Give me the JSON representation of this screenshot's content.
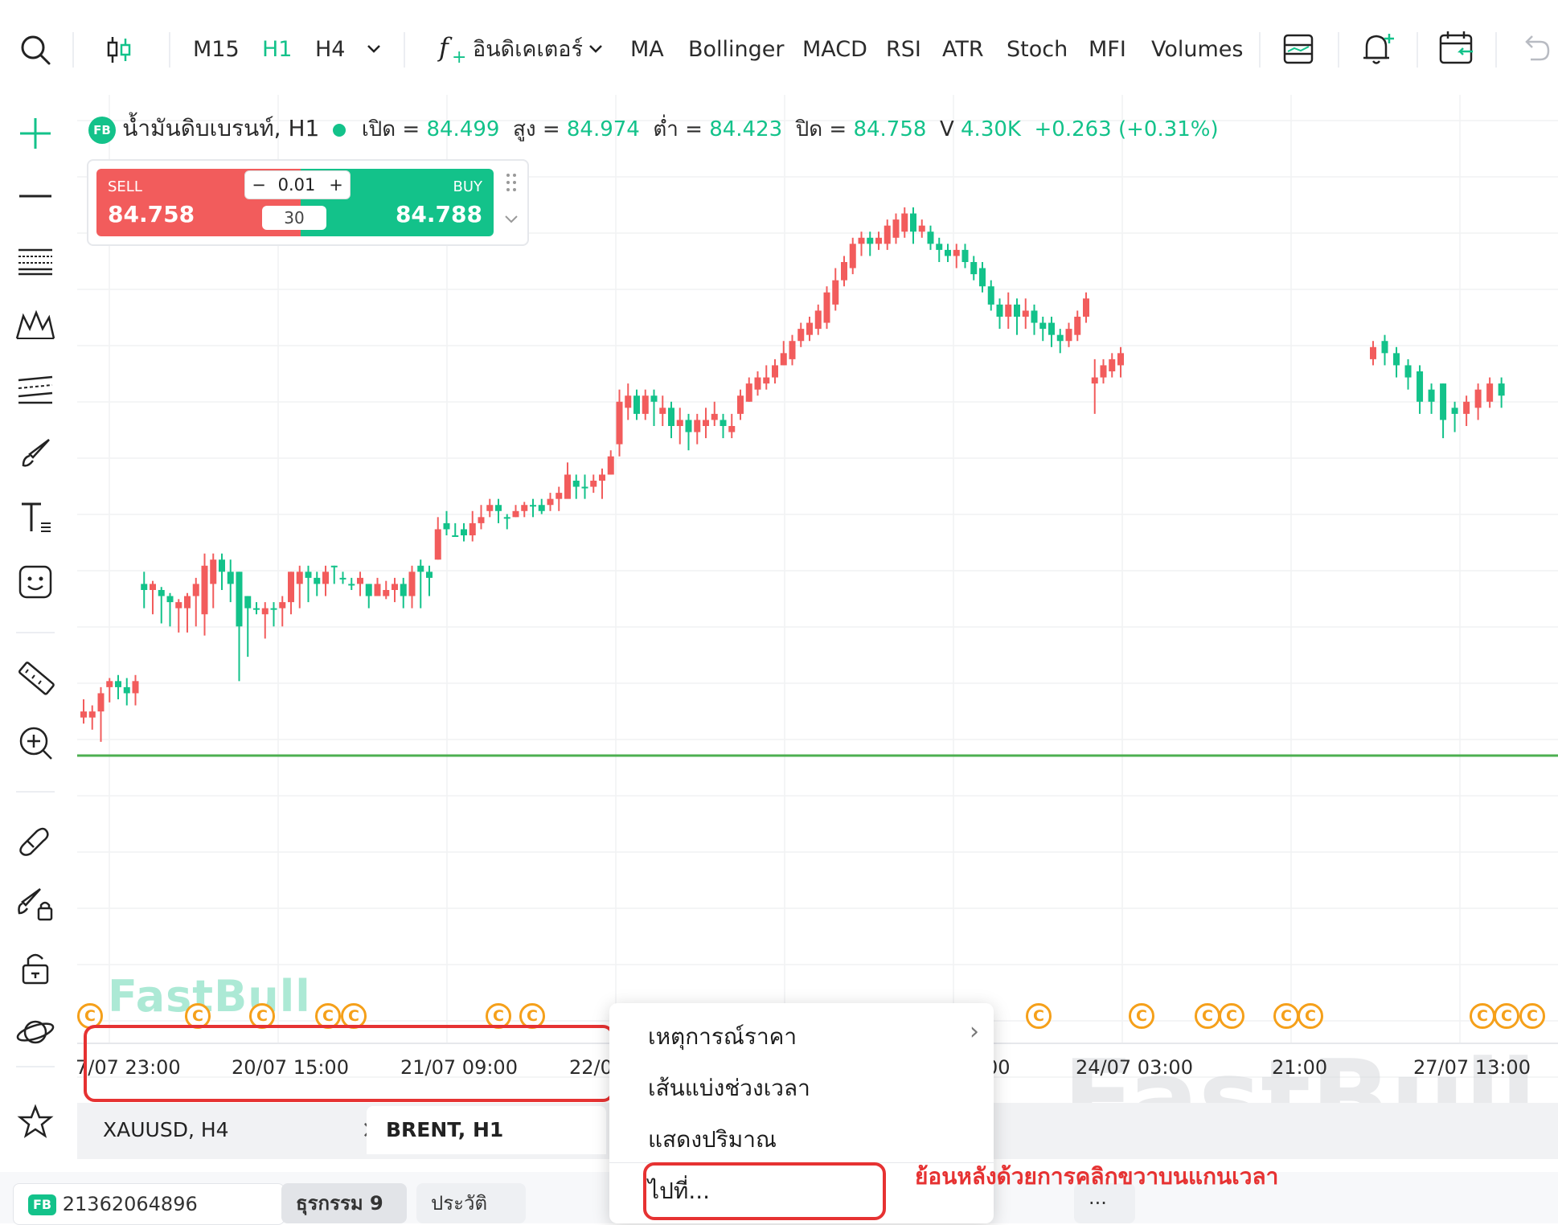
{
  "toolbar": {
    "timeframes": [
      "M15",
      "H1",
      "H4"
    ],
    "active_timeframe": "H1",
    "indicators_label": "อินดิเคเตอร์",
    "indicator_buttons": [
      "MA",
      "Bollinger",
      "MACD",
      "RSI",
      "ATR",
      "Stoch",
      "MFI",
      "Volumes"
    ]
  },
  "legend": {
    "badge": "FB",
    "symbol": "น้ำมันดิบเบรนท์, H1",
    "open_label": "เปิด =",
    "open": "84.499",
    "high_label": "สูง =",
    "high": "84.974",
    "low_label": "ต่ำ =",
    "low": "84.423",
    "close_label": "ปิด =",
    "close": "84.758",
    "volume_label": "V",
    "volume": "4.30K",
    "change": "+0.263 (+0.31%)"
  },
  "trade_panel": {
    "sell_label": "SELL",
    "sell_price": "84.758",
    "buy_label": "BUY",
    "buy_price": "84.788",
    "lot_minus": "−",
    "lot_value": "0.01",
    "lot_plus": "+",
    "spread": "30"
  },
  "chart_data": {
    "type": "candlestick",
    "symbol": "น้ำมันดิบเบรนท์",
    "timeframe": "H1",
    "x_tick_labels": [
      "7/07 23:00",
      "20/07 15:00",
      "21/07 09:00",
      "22/0",
      "00",
      "24/07 03:00",
      "21:00",
      "27/07 13:00"
    ],
    "colors": {
      "up": "#13c28a",
      "down": "#f25c5c",
      "baseline": "#4caf50"
    },
    "candles": [
      [
        70,
        60,
        90,
        50
      ],
      [
        70,
        60,
        80,
        40
      ],
      [
        100,
        70,
        110,
        20
      ],
      [
        120,
        110,
        125,
        85
      ],
      [
        110,
        120,
        130,
        90
      ],
      [
        100,
        110,
        125,
        80
      ],
      [
        120,
        100,
        130,
        80
      ],
      [
        270,
        280,
        300,
        240
      ],
      [
        280,
        270,
        285,
        230
      ],
      [
        260,
        270,
        275,
        215
      ],
      [
        250,
        260,
        265,
        210
      ],
      [
        250,
        240,
        255,
        200
      ],
      [
        260,
        240,
        265,
        200
      ],
      [
        280,
        260,
        290,
        210
      ],
      [
        310,
        230,
        330,
        195
      ],
      [
        320,
        280,
        330,
        240
      ],
      [
        300,
        320,
        330,
        270
      ],
      [
        280,
        300,
        320,
        250
      ],
      [
        210,
        300,
        300,
        120
      ],
      [
        240,
        260,
        260,
        160
      ],
      [
        240,
        240,
        250,
        230
      ],
      [
        240,
        230,
        250,
        190
      ],
      [
        240,
        240,
        250,
        210
      ],
      [
        250,
        240,
        260,
        210
      ],
      [
        300,
        250,
        300,
        230
      ],
      [
        300,
        280,
        310,
        240
      ],
      [
        290,
        300,
        310,
        250
      ],
      [
        280,
        290,
        300,
        260
      ],
      [
        300,
        280,
        310,
        260
      ],
      [
        310,
        310,
        310,
        280
      ],
      [
        290,
        290,
        300,
        280
      ],
      [
        280,
        280,
        290,
        270
      ],
      [
        290,
        280,
        300,
        260
      ],
      [
        260,
        280,
        280,
        240
      ],
      [
        280,
        260,
        290,
        270
      ],
      [
        270,
        260,
        285,
        255
      ],
      [
        280,
        270,
        290,
        250
      ],
      [
        260,
        280,
        290,
        240
      ],
      [
        300,
        260,
        310,
        240
      ],
      [
        300,
        310,
        320,
        240
      ],
      [
        290,
        300,
        310,
        260
      ],
      [
        370,
        320,
        390,
        320
      ],
      [
        370,
        380,
        400,
        360
      ],
      [
        360,
        360,
        380,
        360
      ],
      [
        360,
        370,
        380,
        350
      ],
      [
        380,
        360,
        400,
        350
      ],
      [
        390,
        380,
        410,
        370
      ],
      [
        410,
        400,
        420,
        390
      ],
      [
        400,
        410,
        420,
        380
      ],
      [
        390,
        390,
        395,
        370
      ],
      [
        400,
        390,
        410,
        390
      ],
      [
        410,
        400,
        415,
        390
      ],
      [
        410,
        410,
        420,
        390
      ],
      [
        400,
        410,
        420,
        395
      ],
      [
        420,
        410,
        430,
        400
      ],
      [
        430,
        420,
        440,
        400
      ],
      [
        460,
        420,
        480,
        430
      ],
      [
        440,
        450,
        460,
        420
      ],
      [
        440,
        440,
        460,
        420
      ],
      [
        450,
        440,
        460,
        430
      ],
      [
        460,
        450,
        470,
        420
      ],
      [
        490,
        460,
        500,
        460
      ],
      [
        580,
        510,
        600,
        490
      ],
      [
        590,
        570,
        610,
        550
      ],
      [
        560,
        590,
        600,
        550
      ],
      [
        590,
        560,
        600,
        550
      ],
      [
        580,
        590,
        600,
        540
      ],
      [
        570,
        560,
        590,
        540
      ],
      [
        540,
        570,
        580,
        520
      ],
      [
        550,
        540,
        570,
        510
      ],
      [
        530,
        550,
        560,
        500
      ],
      [
        550,
        530,
        560,
        510
      ],
      [
        550,
        540,
        570,
        520
      ],
      [
        560,
        550,
        580,
        540
      ],
      [
        540,
        550,
        560,
        520
      ],
      [
        540,
        530,
        560,
        520
      ],
      [
        590,
        560,
        600,
        550
      ],
      [
        610,
        580,
        620,
        580
      ],
      [
        620,
        600,
        630,
        590
      ],
      [
        620,
        610,
        640,
        600
      ],
      [
        640,
        620,
        650,
        610
      ],
      [
        660,
        640,
        680,
        640
      ],
      [
        680,
        650,
        690,
        640
      ],
      [
        700,
        680,
        710,
        670
      ],
      [
        710,
        690,
        720,
        680
      ],
      [
        730,
        700,
        740,
        690
      ],
      [
        760,
        710,
        770,
        700
      ],
      [
        780,
        740,
        800,
        730
      ],
      [
        810,
        780,
        820,
        770
      ],
      [
        840,
        800,
        850,
        790
      ],
      [
        850,
        840,
        860,
        820
      ],
      [
        840,
        850,
        860,
        820
      ],
      [
        850,
        840,
        860,
        830
      ],
      [
        870,
        840,
        880,
        830
      ],
      [
        880,
        850,
        890,
        840
      ],
      [
        890,
        860,
        900,
        850
      ],
      [
        860,
        890,
        900,
        840
      ],
      [
        870,
        860,
        880,
        850
      ],
      [
        840,
        860,
        870,
        830
      ],
      [
        830,
        840,
        850,
        810
      ],
      [
        820,
        830,
        840,
        810
      ],
      [
        830,
        820,
        840,
        800
      ],
      [
        810,
        830,
        840,
        800
      ],
      [
        790,
        810,
        820,
        780
      ],
      [
        770,
        800,
        810,
        760
      ],
      [
        740,
        770,
        780,
        730
      ],
      [
        720,
        740,
        750,
        700
      ],
      [
        740,
        720,
        760,
        700
      ],
      [
        720,
        740,
        750,
        690
      ],
      [
        730,
        720,
        750,
        700
      ],
      [
        710,
        730,
        740,
        690
      ],
      [
        700,
        710,
        720,
        680
      ],
      [
        690,
        710,
        720,
        670
      ],
      [
        680,
        690,
        700,
        660
      ],
      [
        700,
        680,
        710,
        670
      ],
      [
        720,
        690,
        730,
        680
      ],
      [
        750,
        720,
        760,
        710
      ],
      [
        620,
        610,
        650,
        560
      ],
      [
        640,
        620,
        650,
        610
      ],
      [
        650,
        630,
        660,
        620
      ],
      [
        660,
        640,
        670,
        620
      ],
      [
        670,
        650,
        680,
        640
      ],
      [
        660,
        680,
        690,
        640
      ],
      [
        640,
        660,
        670,
        620
      ],
      [
        620,
        640,
        650,
        600
      ],
      [
        580,
        630,
        640,
        560
      ],
      [
        580,
        600,
        610,
        560
      ],
      [
        550,
        610,
        610,
        520
      ],
      [
        560,
        570,
        580,
        530
      ],
      [
        580,
        560,
        590,
        540
      ],
      [
        600,
        570,
        610,
        550
      ],
      [
        610,
        580,
        620,
        570
      ],
      [
        590,
        610,
        620,
        570
      ]
    ]
  },
  "time_axis": {
    "labels": [
      "7/07 23:00",
      "20/07 15:00",
      "21/07 09:00",
      "22/0",
      "00",
      "24/07 03:00",
      "21:00",
      "27/07 13:00"
    ]
  },
  "events": {
    "badge_letter": "C"
  },
  "watermark": {
    "small": "FastBull",
    "large": "FastBull"
  },
  "tabs": [
    {
      "label": "XAUUSD, H4",
      "close": "×"
    },
    {
      "label": "BRENT, H1"
    }
  ],
  "context_menu": {
    "items": [
      "เหตุการณ์ราคา",
      "เส้นแบ่งช่วงเวลา",
      "แสดงปริมาณ",
      "ไปที่..."
    ],
    "submenu_arrow": "›"
  },
  "annotation": {
    "caption": "ย้อนหลังด้วยการคลิกขวาบนแกนเวลา"
  },
  "bottom_bar": {
    "account": "21362064896",
    "badge": "FB",
    "tab_orders": "ธุรกรรม 9",
    "tab_history": "ประวัติ",
    "more": "···"
  },
  "icons": {
    "toolbar": [
      "search-icon",
      "candlestick-icon",
      "chevron-down-icon",
      "function-icon",
      "template-icon",
      "alert-bell-icon",
      "calendar-icon",
      "undo-icon"
    ],
    "sidebar": [
      "crosshair-icon",
      "line-icon",
      "fib-icon",
      "pattern-icon",
      "channel-icon",
      "brush-icon",
      "text-icon",
      "emoji-icon",
      "ruler-icon",
      "zoom-in-icon",
      "magnet-icon",
      "lock-drawing-icon",
      "unlock-icon",
      "planet-icon",
      "star-icon"
    ]
  }
}
